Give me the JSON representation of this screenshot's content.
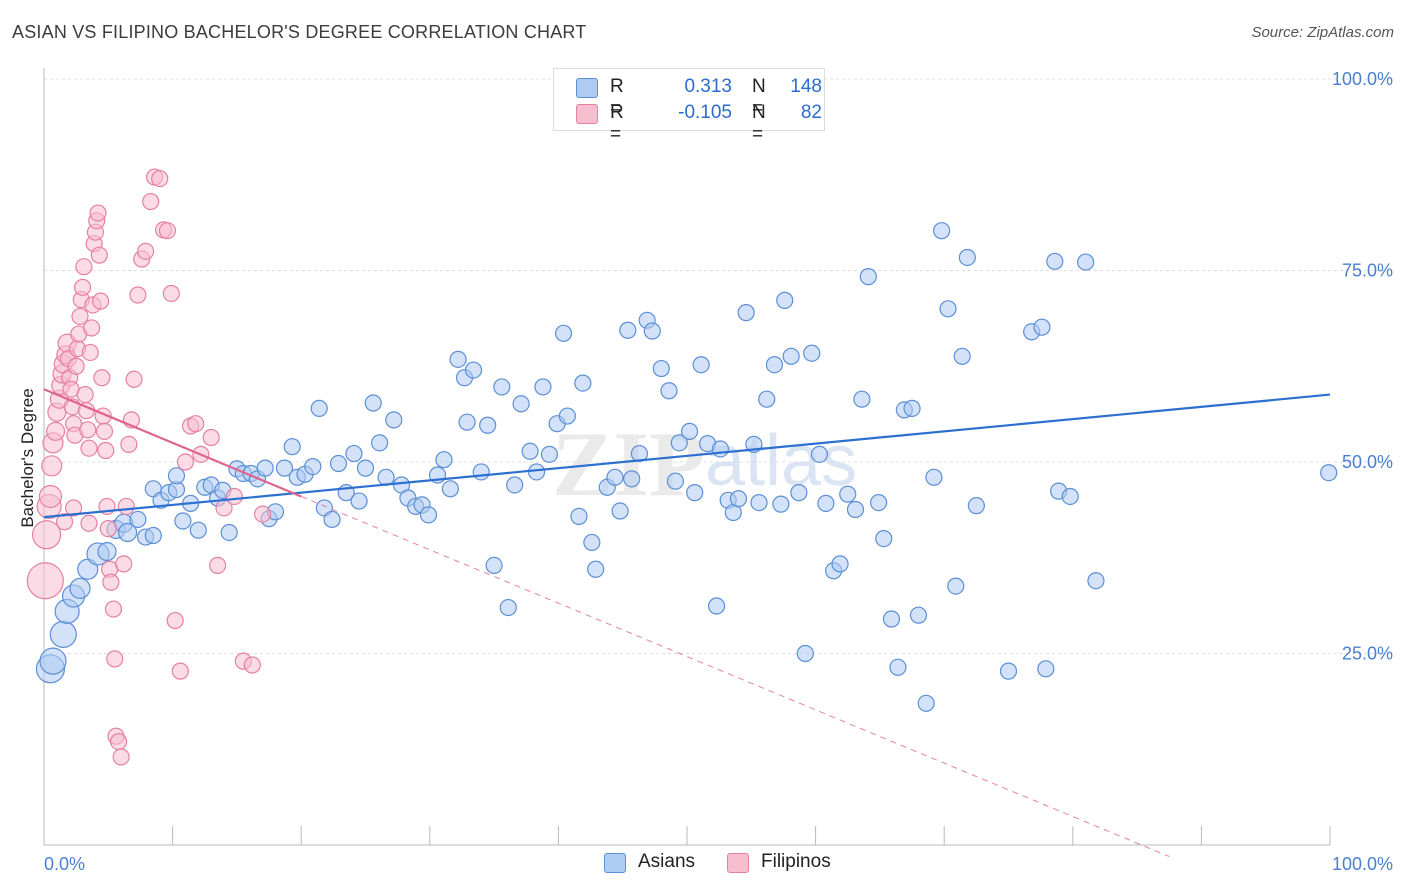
{
  "title": "ASIAN VS FILIPINO BACHELOR'S DEGREE CORRELATION CHART",
  "source": "Source: ZipAtlas.com",
  "legend": {
    "rows": [
      {
        "r_label": "R =",
        "r_value": "0.313",
        "n_label": "N =",
        "n_value": "148",
        "fill": "#aecbf2",
        "stroke": "#5b8fd6"
      },
      {
        "r_label": "R =",
        "r_value": "-0.105",
        "n_label": "N =",
        "n_value": "82",
        "fill": "#f7bed0",
        "stroke": "#e680a3"
      }
    ]
  },
  "bottom_legend": [
    {
      "label": "Asians",
      "fill": "#aecbf2",
      "stroke": "#5b8fd6"
    },
    {
      "label": "Filipinos",
      "fill": "#f7bed0",
      "stroke": "#e680a3"
    }
  ],
  "chart_data": {
    "type": "scatter",
    "title": "ASIAN VS FILIPINO BACHELOR'S DEGREE CORRELATION CHART",
    "ylabel": "Bachelor's Degree",
    "xlabel": "",
    "x_tick_labels": [
      "0.0%",
      "100.0%"
    ],
    "y_tick_labels": [
      "100.0%",
      "75.0%",
      "50.0%",
      "25.0%"
    ],
    "y_tick_values": [
      100,
      75,
      50,
      25
    ],
    "xlim": [
      0,
      100
    ],
    "ylim": [
      0,
      100
    ],
    "grid": true,
    "legend_position": "top-center",
    "watermark": "ZIPatlas",
    "colors": {
      "asians": "#5b8fd6",
      "asians_line": "#2b6fd0",
      "filipinos": "#e680a3",
      "filipinos_line": "#e0648f"
    },
    "trendlines": [
      {
        "series": "Asians",
        "x": [
          0,
          100
        ],
        "y": [
          42.8,
          58.8
        ],
        "style": "solid"
      },
      {
        "series": "Filipinos",
        "x": [
          0,
          20
        ],
        "y": [
          59.5,
          45.5
        ],
        "style": "solid"
      },
      {
        "series": "Filipinos",
        "x": [
          20,
          87.5
        ],
        "y": [
          45.5,
          -1.5
        ],
        "style": "dashed"
      }
    ],
    "series": [
      {
        "name": "Asians",
        "points": [
          [
            0.5,
            23.0,
            14
          ],
          [
            0.7,
            24.0,
            13
          ],
          [
            1.5,
            27.5,
            13
          ],
          [
            1.8,
            30.5,
            12
          ],
          [
            2.3,
            32.5,
            11
          ],
          [
            2.8,
            33.5,
            10
          ],
          [
            3.4,
            36.0,
            10
          ],
          [
            4.2,
            38.0,
            11
          ],
          [
            4.9,
            38.3,
            9
          ],
          [
            5.6,
            41.2,
            9
          ],
          [
            6.2,
            42.0,
            9
          ],
          [
            6.5,
            40.8,
            9
          ],
          [
            7.3,
            42.5,
            8
          ],
          [
            7.9,
            40.2,
            8
          ],
          [
            8.5,
            40.4,
            8
          ],
          [
            8.5,
            46.5,
            8
          ],
          [
            9.1,
            45.0,
            8
          ],
          [
            9.7,
            46.0,
            8
          ],
          [
            10.3,
            46.4,
            8
          ],
          [
            10.3,
            48.2,
            8
          ],
          [
            10.8,
            42.3,
            8
          ],
          [
            11.4,
            44.6,
            8
          ],
          [
            12.0,
            41.1,
            8
          ],
          [
            12.5,
            46.7,
            8
          ],
          [
            13.0,
            47.0,
            8
          ],
          [
            13.5,
            45.3,
            8
          ],
          [
            13.9,
            46.3,
            8
          ],
          [
            14.4,
            40.8,
            8
          ],
          [
            15.0,
            49.1,
            8
          ],
          [
            15.5,
            48.5,
            8
          ],
          [
            16.1,
            48.5,
            8
          ],
          [
            16.6,
            47.8,
            8
          ],
          [
            17.2,
            49.2,
            8
          ],
          [
            17.5,
            42.6,
            8
          ],
          [
            18.0,
            43.5,
            8
          ],
          [
            18.7,
            49.2,
            8
          ],
          [
            19.3,
            52.0,
            8
          ],
          [
            19.7,
            48.0,
            8
          ],
          [
            20.3,
            48.4,
            8
          ],
          [
            20.9,
            49.4,
            8
          ],
          [
            21.4,
            57.0,
            8
          ],
          [
            21.8,
            44.0,
            8
          ],
          [
            22.4,
            42.5,
            8
          ],
          [
            22.9,
            49.8,
            8
          ],
          [
            23.5,
            46.0,
            8
          ],
          [
            24.1,
            51.1,
            8
          ],
          [
            24.5,
            44.9,
            8
          ],
          [
            25.0,
            49.2,
            8
          ],
          [
            25.6,
            57.7,
            8
          ],
          [
            26.1,
            52.5,
            8
          ],
          [
            26.6,
            48.0,
            8
          ],
          [
            27.2,
            55.5,
            8
          ],
          [
            27.8,
            47.0,
            8
          ],
          [
            28.3,
            45.3,
            8
          ],
          [
            28.9,
            44.2,
            8
          ],
          [
            29.4,
            44.4,
            8
          ],
          [
            29.9,
            43.1,
            8
          ],
          [
            30.6,
            48.3,
            8
          ],
          [
            31.1,
            50.3,
            8
          ],
          [
            31.6,
            46.5,
            8
          ],
          [
            32.2,
            63.4,
            8
          ],
          [
            32.7,
            61.0,
            8
          ],
          [
            32.9,
            55.2,
            8
          ],
          [
            33.4,
            62.0,
            8
          ],
          [
            34.0,
            48.7,
            8
          ],
          [
            34.5,
            54.8,
            8
          ],
          [
            35.0,
            36.5,
            8
          ],
          [
            35.6,
            59.8,
            8
          ],
          [
            36.1,
            31.0,
            8
          ],
          [
            36.6,
            47.0,
            8
          ],
          [
            37.1,
            57.6,
            8
          ],
          [
            37.8,
            51.4,
            8
          ],
          [
            38.3,
            48.7,
            8
          ],
          [
            38.8,
            59.8,
            8
          ],
          [
            39.3,
            51.0,
            8
          ],
          [
            39.9,
            55.0,
            8
          ],
          [
            40.4,
            66.8,
            8
          ],
          [
            40.7,
            56.0,
            8
          ],
          [
            41.6,
            42.9,
            8
          ],
          [
            41.9,
            60.3,
            8
          ],
          [
            42.6,
            39.5,
            8
          ],
          [
            42.9,
            36.0,
            8
          ],
          [
            43.8,
            46.7,
            8
          ],
          [
            44.4,
            48.0,
            8
          ],
          [
            44.8,
            43.6,
            8
          ],
          [
            45.4,
            67.2,
            8
          ],
          [
            45.7,
            47.8,
            8
          ],
          [
            46.3,
            51.1,
            8
          ],
          [
            46.9,
            68.5,
            8
          ],
          [
            47.3,
            67.1,
            8
          ],
          [
            48.0,
            62.2,
            8
          ],
          [
            48.6,
            59.3,
            8
          ],
          [
            49.1,
            47.5,
            8
          ],
          [
            49.4,
            52.5,
            8
          ],
          [
            50.2,
            54.0,
            8
          ],
          [
            50.6,
            46.0,
            8
          ],
          [
            51.1,
            62.7,
            8
          ],
          [
            51.6,
            52.4,
            8
          ],
          [
            52.3,
            31.2,
            8
          ],
          [
            52.6,
            51.7,
            8
          ],
          [
            53.2,
            45.0,
            8
          ],
          [
            53.6,
            43.4,
            8
          ],
          [
            54.0,
            45.2,
            8
          ],
          [
            54.6,
            69.5,
            8
          ],
          [
            55.2,
            52.3,
            8
          ],
          [
            55.6,
            44.7,
            8
          ],
          [
            56.2,
            58.2,
            8
          ],
          [
            56.8,
            62.7,
            8
          ],
          [
            57.3,
            44.5,
            8
          ],
          [
            57.6,
            71.1,
            8
          ],
          [
            58.1,
            63.8,
            8
          ],
          [
            58.7,
            46.0,
            8
          ],
          [
            59.2,
            25.0,
            8
          ],
          [
            59.7,
            64.2,
            8
          ],
          [
            60.3,
            51.0,
            8
          ],
          [
            60.8,
            44.6,
            8
          ],
          [
            61.4,
            35.8,
            8
          ],
          [
            61.9,
            36.7,
            8
          ],
          [
            62.5,
            45.8,
            8
          ],
          [
            63.1,
            43.8,
            8
          ],
          [
            63.6,
            58.2,
            8
          ],
          [
            64.1,
            74.2,
            8
          ],
          [
            64.9,
            44.7,
            8
          ],
          [
            65.3,
            40.0,
            8
          ],
          [
            65.9,
            29.5,
            8
          ],
          [
            66.4,
            23.2,
            8
          ],
          [
            66.9,
            56.8,
            8
          ],
          [
            67.5,
            57.0,
            8
          ],
          [
            68.0,
            30.0,
            8
          ],
          [
            68.6,
            18.5,
            8
          ],
          [
            69.2,
            48.0,
            8
          ],
          [
            69.8,
            80.2,
            8
          ],
          [
            70.3,
            70.0,
            8
          ],
          [
            70.9,
            33.8,
            8
          ],
          [
            71.4,
            63.8,
            8
          ],
          [
            71.8,
            76.7,
            8
          ],
          [
            72.5,
            44.3,
            8
          ],
          [
            75.0,
            22.7,
            8
          ],
          [
            76.8,
            67.0,
            8
          ],
          [
            77.6,
            67.6,
            8
          ],
          [
            77.9,
            23.0,
            8
          ],
          [
            78.6,
            76.2,
            8
          ],
          [
            78.9,
            46.2,
            8
          ],
          [
            79.8,
            45.5,
            8
          ],
          [
            81.0,
            76.1,
            8
          ],
          [
            81.8,
            34.5,
            8
          ],
          [
            99.9,
            48.6,
            8
          ]
        ]
      },
      {
        "name": "Filipinos",
        "points": [
          [
            0.1,
            34.5,
            18
          ],
          [
            0.2,
            40.5,
            14
          ],
          [
            0.4,
            44.2,
            12
          ],
          [
            0.5,
            45.5,
            11
          ],
          [
            0.6,
            49.5,
            10
          ],
          [
            0.7,
            52.5,
            10
          ],
          [
            0.9,
            54.0,
            9
          ],
          [
            1.0,
            56.5,
            9
          ],
          [
            1.2,
            58.2,
            9
          ],
          [
            1.3,
            60.0,
            9
          ],
          [
            1.4,
            61.5,
            9
          ],
          [
            1.5,
            62.8,
            9
          ],
          [
            1.7,
            64.0,
            9
          ],
          [
            1.8,
            65.5,
            9
          ],
          [
            1.9,
            63.5,
            8
          ],
          [
            2.0,
            61.0,
            8
          ],
          [
            2.1,
            59.5,
            8
          ],
          [
            2.2,
            57.2,
            8
          ],
          [
            2.3,
            55.0,
            8
          ],
          [
            2.4,
            53.5,
            8
          ],
          [
            2.5,
            62.5,
            8
          ],
          [
            2.6,
            64.8,
            8
          ],
          [
            2.7,
            66.7,
            8
          ],
          [
            2.8,
            69.0,
            8
          ],
          [
            2.9,
            71.2,
            8
          ],
          [
            3.0,
            72.8,
            8
          ],
          [
            3.1,
            75.5,
            8
          ],
          [
            3.2,
            58.8,
            8
          ],
          [
            3.3,
            56.7,
            8
          ],
          [
            3.4,
            54.2,
            8
          ],
          [
            3.5,
            51.8,
            8
          ],
          [
            3.6,
            64.3,
            8
          ],
          [
            3.7,
            67.5,
            8
          ],
          [
            3.8,
            70.5,
            8
          ],
          [
            3.9,
            78.5,
            8
          ],
          [
            4.0,
            80.0,
            8
          ],
          [
            4.1,
            81.5,
            8
          ],
          [
            4.2,
            82.5,
            8
          ],
          [
            4.3,
            77.0,
            8
          ],
          [
            4.4,
            71.0,
            8
          ],
          [
            4.5,
            61.0,
            8
          ],
          [
            4.6,
            56.0,
            8
          ],
          [
            4.7,
            54.0,
            8
          ],
          [
            4.8,
            51.5,
            8
          ],
          [
            4.9,
            44.2,
            8
          ],
          [
            5.0,
            41.3,
            8
          ],
          [
            5.1,
            36.0,
            8
          ],
          [
            5.2,
            34.3,
            8
          ],
          [
            5.4,
            30.8,
            8
          ],
          [
            5.5,
            24.3,
            8
          ],
          [
            5.6,
            14.2,
            8
          ],
          [
            5.8,
            13.5,
            8
          ],
          [
            6.0,
            11.5,
            8
          ],
          [
            6.2,
            36.7,
            8
          ],
          [
            6.4,
            44.2,
            8
          ],
          [
            6.6,
            52.3,
            8
          ],
          [
            6.8,
            55.5,
            8
          ],
          [
            7.0,
            60.8,
            8
          ],
          [
            7.3,
            71.8,
            8
          ],
          [
            7.6,
            76.5,
            8
          ],
          [
            7.9,
            77.5,
            8
          ],
          [
            8.3,
            84.0,
            8
          ],
          [
            8.6,
            87.2,
            8
          ],
          [
            9.0,
            87.0,
            8
          ],
          [
            9.3,
            80.3,
            8
          ],
          [
            9.6,
            80.2,
            8
          ],
          [
            9.9,
            72.0,
            8
          ],
          [
            10.2,
            29.3,
            8
          ],
          [
            10.6,
            22.7,
            8
          ],
          [
            11.0,
            50.0,
            8
          ],
          [
            11.4,
            54.7,
            8
          ],
          [
            11.8,
            55.0,
            8
          ],
          [
            12.2,
            51.0,
            8
          ],
          [
            13.0,
            53.2,
            8
          ],
          [
            13.5,
            36.5,
            8
          ],
          [
            14.0,
            44.0,
            8
          ],
          [
            14.8,
            45.5,
            8
          ],
          [
            15.5,
            24.0,
            8
          ],
          [
            16.2,
            23.5,
            8
          ],
          [
            17.0,
            43.2,
            8
          ],
          [
            1.6,
            42.2,
            8
          ],
          [
            2.3,
            44.0,
            8
          ],
          [
            3.5,
            42.0,
            8
          ]
        ]
      }
    ]
  }
}
